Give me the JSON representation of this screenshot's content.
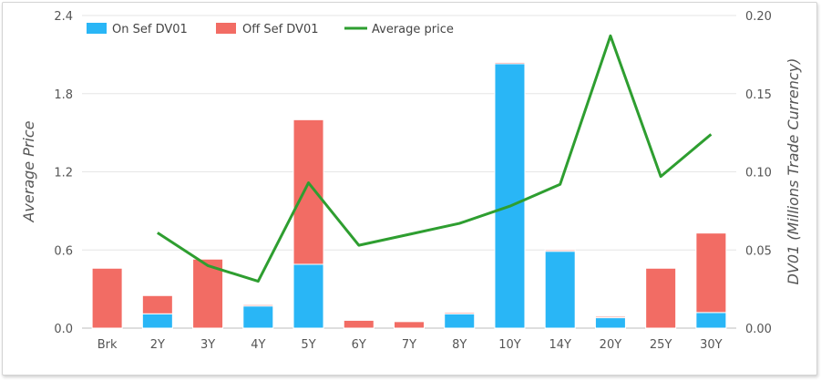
{
  "chart_data": {
    "type": "bar",
    "stacked": true,
    "categories": [
      "Brk",
      "2Y",
      "3Y",
      "4Y",
      "5Y",
      "6Y",
      "7Y",
      "8Y",
      "10Y",
      "14Y",
      "20Y",
      "25Y",
      "30Y"
    ],
    "series": [
      {
        "name": "On Sef DV01",
        "type": "bar",
        "axis": "left",
        "color": "#29b6f6",
        "values": [
          0.0,
          0.11,
          0.0,
          0.17,
          0.49,
          0.0,
          0.0,
          0.11,
          2.03,
          0.59,
          0.08,
          0.0,
          0.12
        ]
      },
      {
        "name": "Off Sef DV01",
        "type": "bar",
        "axis": "left",
        "color": "#f26c64",
        "values": [
          0.46,
          0.14,
          0.53,
          0.01,
          1.11,
          0.06,
          0.05,
          0.01,
          0.01,
          0.01,
          0.01,
          0.46,
          0.61
        ]
      },
      {
        "name": "Average price",
        "type": "line",
        "axis": "right",
        "color": "#2e9e30",
        "values": [
          null,
          0.061,
          0.04,
          0.03,
          0.093,
          0.053,
          0.06,
          0.067,
          0.078,
          0.092,
          0.187,
          0.097,
          0.124
        ]
      }
    ],
    "left_axis": {
      "label": "Average Price",
      "min": 0,
      "max": 2.4,
      "ticks": [
        "0.0",
        "0.6",
        "1.2",
        "1.8",
        "2.4"
      ]
    },
    "right_axis": {
      "label": "DV01 (Millions Trade Currency)",
      "min": 0,
      "max": 0.2,
      "ticks": [
        "0.00",
        "0.05",
        "0.10",
        "0.15",
        "0.20"
      ]
    },
    "grid": "horizontal",
    "legend_position": "top-left"
  }
}
